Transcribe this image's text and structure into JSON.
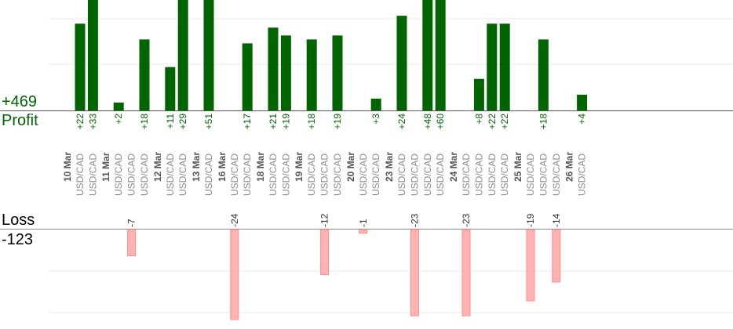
{
  "summary": {
    "profit_total": "+469",
    "profit_label": "Profit",
    "loss_label": "Loss",
    "loss_total": "-123"
  },
  "colors": {
    "profit_bar": "#006400",
    "loss_bar": "#ffb3b3",
    "profit_text": "#006400",
    "date_text": "#555555",
    "symbol_text": "#8c8c8c"
  },
  "chart_data": {
    "type": "bar",
    "title": "",
    "xlabel": "",
    "ylabel": "",
    "grid": true,
    "profit_ylim": [
      0,
      28
    ],
    "loss_ylim": [
      -24,
      0
    ],
    "days": [
      {
        "date": "10 Mar",
        "trades": [
          {
            "symbol": "USD/CAD",
            "value": 22,
            "label": "+22"
          },
          {
            "symbol": "USD/CAD",
            "value": 33,
            "label": "+33"
          }
        ]
      },
      {
        "date": "11 Mar",
        "trades": [
          {
            "symbol": "USD/CAD",
            "value": 2,
            "label": "+2"
          },
          {
            "symbol": "USD/CAD",
            "value": -7,
            "label": "-7"
          },
          {
            "symbol": "USD/CAD",
            "value": 18,
            "label": "+18"
          }
        ]
      },
      {
        "date": "12 Mar",
        "trades": [
          {
            "symbol": "USD/CAD",
            "value": 11,
            "label": "+11"
          },
          {
            "symbol": "USD/CAD",
            "value": 29,
            "label": "+29"
          }
        ]
      },
      {
        "date": "13 Mar",
        "trades": [
          {
            "symbol": "USD/CAD",
            "value": 51,
            "label": "+51"
          }
        ]
      },
      {
        "date": "16 Mar",
        "trades": [
          {
            "symbol": "USD/CAD",
            "value": -24,
            "label": "-24"
          },
          {
            "symbol": "USD/CAD",
            "value": 17,
            "label": "+17"
          }
        ]
      },
      {
        "date": "18 Mar",
        "trades": [
          {
            "symbol": "USD/CAD",
            "value": 21,
            "label": "+21"
          },
          {
            "symbol": "USD/CAD",
            "value": 19,
            "label": "+19"
          }
        ]
      },
      {
        "date": "19 Mar",
        "trades": [
          {
            "symbol": "USD/CAD",
            "value": 18,
            "label": "+18"
          },
          {
            "symbol": "USD/CAD",
            "value": -12,
            "label": "-12"
          },
          {
            "symbol": "USD/CAD",
            "value": 19,
            "label": "+19"
          }
        ]
      },
      {
        "date": "20 Mar",
        "trades": [
          {
            "symbol": "USD/CAD",
            "value": -1,
            "label": "-1"
          },
          {
            "symbol": "USD/CAD",
            "value": 3,
            "label": "+3"
          }
        ]
      },
      {
        "date": "23 Mar",
        "trades": [
          {
            "symbol": "USD/CAD",
            "value": 24,
            "label": "+24"
          },
          {
            "symbol": "USD/CAD",
            "value": -23,
            "label": "-23"
          },
          {
            "symbol": "USD/CAD",
            "value": 48,
            "label": "+48"
          },
          {
            "symbol": "USD/CAD",
            "value": 60,
            "label": "+60"
          }
        ]
      },
      {
        "date": "24 Mar",
        "trades": [
          {
            "symbol": "USD/CAD",
            "value": -23,
            "label": "-23"
          },
          {
            "symbol": "USD/CAD",
            "value": 8,
            "label": "+8"
          },
          {
            "symbol": "USD/CAD",
            "value": 22,
            "label": "+22"
          },
          {
            "symbol": "USD/CAD",
            "value": 22,
            "label": "+22"
          }
        ]
      },
      {
        "date": "25 Mar",
        "trades": [
          {
            "symbol": "USD/CAD",
            "value": -19,
            "label": "-19"
          },
          {
            "symbol": "USD/CAD",
            "value": 18,
            "label": "+18"
          },
          {
            "symbol": "USD/CAD",
            "value": -14,
            "label": "-14"
          }
        ]
      },
      {
        "date": "26 Mar",
        "trades": [
          {
            "symbol": "USD/CAD",
            "value": 4,
            "label": "+4"
          }
        ]
      }
    ]
  }
}
